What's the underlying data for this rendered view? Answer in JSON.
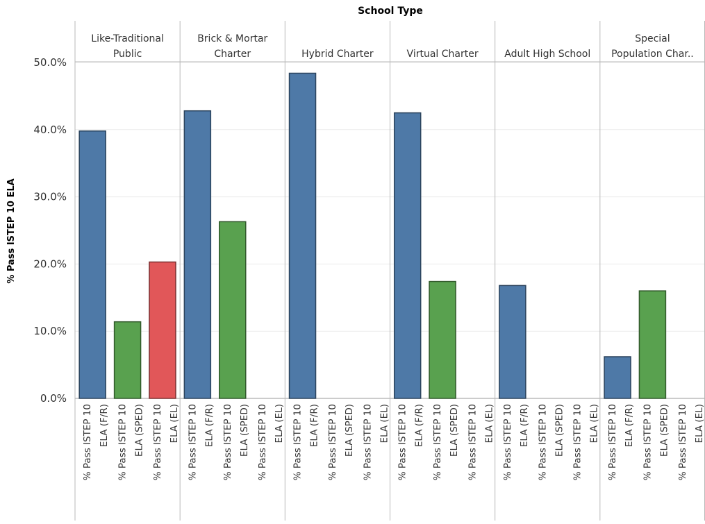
{
  "chart_data": {
    "type": "bar",
    "title": "School Type",
    "ylabel": "% Pass ISTEP 10 ELA",
    "ylim": [
      0,
      50
    ],
    "yticks": [
      "0.0%",
      "10.0%",
      "20.0%",
      "30.0%",
      "40.0%",
      "50.0%"
    ],
    "grid": true,
    "categories": [
      [
        "% Pass ISTEP 10",
        "ELA (F/R)"
      ],
      [
        "% Pass ISTEP 10",
        "ELA (SPED)"
      ],
      [
        "% Pass ISTEP 10",
        "ELA (EL)"
      ]
    ],
    "colors": [
      "#4e79a7",
      "#59a14f",
      "#e15759"
    ],
    "panels": [
      {
        "header": [
          "Like-Traditional",
          "Public"
        ],
        "values": [
          39.8,
          11.4,
          20.3
        ]
      },
      {
        "header": [
          "Brick & Mortar",
          "Charter"
        ],
        "values": [
          42.8,
          26.3,
          null
        ]
      },
      {
        "header": [
          "Hybrid Charter"
        ],
        "values": [
          48.4,
          null,
          null
        ]
      },
      {
        "header": [
          "Virtual Charter"
        ],
        "values": [
          42.5,
          17.4,
          null
        ]
      },
      {
        "header": [
          "Adult High School"
        ],
        "values": [
          16.8,
          null,
          null
        ]
      },
      {
        "header": [
          "Special",
          "Population Char.."
        ],
        "values": [
          6.2,
          16.0,
          null
        ]
      }
    ]
  }
}
